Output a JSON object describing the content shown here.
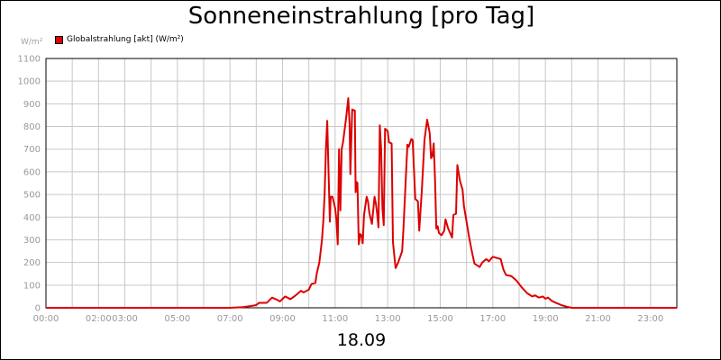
{
  "chart_data": {
    "type": "line",
    "title": "Sonneneinstrahlung [pro Tag]",
    "unit_label": "W/m²",
    "date_label": "18.09",
    "ylim": [
      0,
      1100
    ],
    "yticks": [
      0,
      100,
      200,
      300,
      400,
      500,
      600,
      700,
      800,
      900,
      1000,
      1100
    ],
    "xlim": [
      "00:00",
      "24:00"
    ],
    "xticks": [
      {
        "t": 0,
        "label": "00:00"
      },
      {
        "t": 2,
        "label": "02:00"
      },
      {
        "t": 3,
        "label": "03:00"
      },
      {
        "t": 5,
        "label": "05:00"
      },
      {
        "t": 7,
        "label": "07:00"
      },
      {
        "t": 9,
        "label": "09:00"
      },
      {
        "t": 11,
        "label": "11:00"
      },
      {
        "t": 13,
        "label": "13:00"
      },
      {
        "t": 15,
        "label": "15:00"
      },
      {
        "t": 17,
        "label": "17:00"
      },
      {
        "t": 19,
        "label": "19:00"
      },
      {
        "t": 21,
        "label": "21:00"
      },
      {
        "t": 23,
        "label": "23:00"
      }
    ],
    "grid": true,
    "legend_position": "top-left",
    "series": [
      {
        "name": "Globalstrahlung [akt] (W/m²)",
        "color": "#dd0000",
        "points": [
          [
            0,
            0
          ],
          [
            7.0,
            0
          ],
          [
            7.5,
            3
          ],
          [
            7.8,
            8
          ],
          [
            8.0,
            12
          ],
          [
            8.1,
            22
          ],
          [
            8.4,
            22
          ],
          [
            8.6,
            45
          ],
          [
            8.8,
            35
          ],
          [
            8.9,
            28
          ],
          [
            9.1,
            50
          ],
          [
            9.3,
            38
          ],
          [
            9.5,
            55
          ],
          [
            9.7,
            75
          ],
          [
            9.8,
            68
          ],
          [
            10.0,
            80
          ],
          [
            10.1,
            105
          ],
          [
            10.25,
            110
          ],
          [
            10.3,
            150
          ],
          [
            10.4,
            200
          ],
          [
            10.5,
            300
          ],
          [
            10.55,
            380
          ],
          [
            10.6,
            500
          ],
          [
            10.65,
            700
          ],
          [
            10.7,
            825
          ],
          [
            10.75,
            600
          ],
          [
            10.8,
            380
          ],
          [
            10.83,
            490
          ],
          [
            10.9,
            490
          ],
          [
            11.0,
            440
          ],
          [
            11.05,
            390
          ],
          [
            11.1,
            280
          ],
          [
            11.15,
            700
          ],
          [
            11.2,
            430
          ],
          [
            11.25,
            700
          ],
          [
            11.3,
            730
          ],
          [
            11.4,
            820
          ],
          [
            11.45,
            870
          ],
          [
            11.5,
            925
          ],
          [
            11.55,
            810
          ],
          [
            11.58,
            590
          ],
          [
            11.65,
            875
          ],
          [
            11.75,
            870
          ],
          [
            11.78,
            510
          ],
          [
            11.82,
            555
          ],
          [
            11.85,
            550
          ],
          [
            11.9,
            280
          ],
          [
            11.95,
            325
          ],
          [
            12.0,
            320
          ],
          [
            12.05,
            285
          ],
          [
            12.1,
            410
          ],
          [
            12.2,
            490
          ],
          [
            12.25,
            470
          ],
          [
            12.3,
            420
          ],
          [
            12.4,
            370
          ],
          [
            12.5,
            490
          ],
          [
            12.55,
            460
          ],
          [
            12.6,
            415
          ],
          [
            12.65,
            355
          ],
          [
            12.7,
            805
          ],
          [
            12.75,
            700
          ],
          [
            12.8,
            440
          ],
          [
            12.85,
            365
          ],
          [
            12.9,
            790
          ],
          [
            13.0,
            780
          ],
          [
            13.05,
            730
          ],
          [
            13.15,
            725
          ],
          [
            13.2,
            290
          ],
          [
            13.3,
            175
          ],
          [
            13.4,
            200
          ],
          [
            13.55,
            250
          ],
          [
            13.6,
            350
          ],
          [
            13.75,
            720
          ],
          [
            13.8,
            710
          ],
          [
            13.9,
            745
          ],
          [
            13.95,
            740
          ],
          [
            14.05,
            480
          ],
          [
            14.15,
            470
          ],
          [
            14.2,
            340
          ],
          [
            14.25,
            430
          ],
          [
            14.3,
            520
          ],
          [
            14.4,
            740
          ],
          [
            14.5,
            830
          ],
          [
            14.6,
            770
          ],
          [
            14.65,
            660
          ],
          [
            14.7,
            670
          ],
          [
            14.75,
            725
          ],
          [
            14.8,
            570
          ],
          [
            14.85,
            350
          ],
          [
            14.9,
            360
          ],
          [
            14.95,
            330
          ],
          [
            15.05,
            320
          ],
          [
            15.15,
            340
          ],
          [
            15.2,
            390
          ],
          [
            15.3,
            350
          ],
          [
            15.45,
            310
          ],
          [
            15.5,
            410
          ],
          [
            15.6,
            415
          ],
          [
            15.65,
            630
          ],
          [
            15.75,
            560
          ],
          [
            15.85,
            520
          ],
          [
            15.9,
            450
          ],
          [
            16.0,
            380
          ],
          [
            16.1,
            310
          ],
          [
            16.2,
            250
          ],
          [
            16.3,
            195
          ],
          [
            16.5,
            180
          ],
          [
            16.6,
            200
          ],
          [
            16.75,
            215
          ],
          [
            16.85,
            205
          ],
          [
            17.0,
            225
          ],
          [
            17.3,
            215
          ],
          [
            17.4,
            170
          ],
          [
            17.5,
            145
          ],
          [
            17.7,
            140
          ],
          [
            17.9,
            120
          ],
          [
            18.1,
            90
          ],
          [
            18.3,
            65
          ],
          [
            18.5,
            50
          ],
          [
            18.6,
            55
          ],
          [
            18.75,
            45
          ],
          [
            18.9,
            50
          ],
          [
            19.0,
            40
          ],
          [
            19.1,
            45
          ],
          [
            19.25,
            30
          ],
          [
            19.4,
            22
          ],
          [
            19.6,
            12
          ],
          [
            19.8,
            5
          ],
          [
            20.0,
            0
          ],
          [
            24.0,
            0
          ]
        ]
      }
    ]
  }
}
